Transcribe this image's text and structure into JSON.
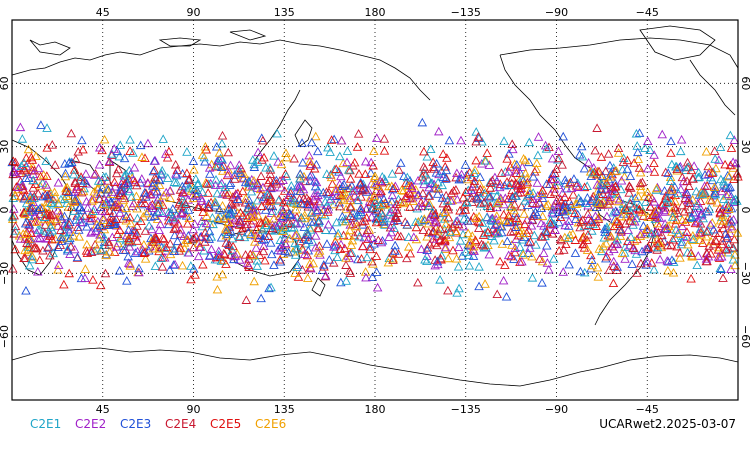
{
  "map": {
    "projection": "cylindrical-equidistant",
    "lon_range": [
      0,
      360
    ],
    "lat_range": [
      -90,
      90
    ],
    "center_lon": 180,
    "gridlines": "dotted",
    "lon_ticks": [
      "45",
      "90",
      "135",
      "180",
      "−135",
      "−90",
      "−45"
    ],
    "lat_ticks": [
      "60",
      "30",
      "0",
      "−30",
      "−60"
    ],
    "observation_lat_range": [
      -45,
      45
    ],
    "marker_shape": "triangle-open"
  },
  "legend": [
    {
      "label": "C2E1",
      "color": "#1fa5c8"
    },
    {
      "label": "C2E2",
      "color": "#a020c8"
    },
    {
      "label": "C2E3",
      "color": "#2050d8"
    },
    {
      "label": "C2E4",
      "color": "#c81830"
    },
    {
      "label": "C2E5",
      "color": "#e01010"
    },
    {
      "label": "C2E6",
      "color": "#f0a000"
    }
  ],
  "run_label": "UCARwet2.2025-03-07"
}
